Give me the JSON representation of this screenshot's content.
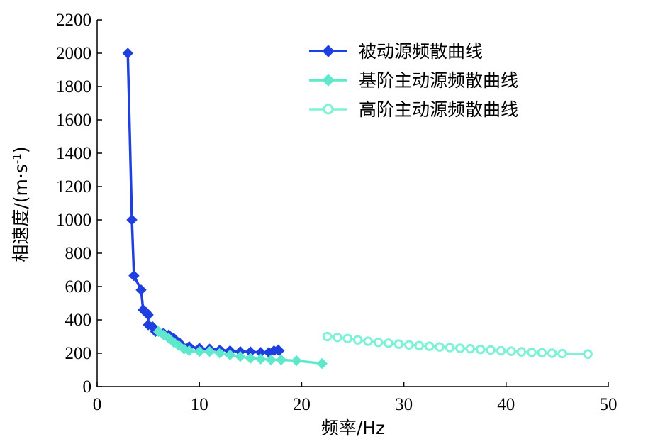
{
  "chart_data": {
    "type": "line",
    "xlabel": "频率/Hz",
    "ylabel": "相速度/(m·s",
    "ylabel_sup": "-1",
    "ylabel_end": ")",
    "xlim": [
      0,
      50
    ],
    "ylim": [
      0,
      2200
    ],
    "xticks": [
      0,
      10,
      20,
      30,
      40,
      50
    ],
    "yticks": [
      0,
      200,
      400,
      600,
      800,
      1000,
      1200,
      1400,
      1600,
      1800,
      2000,
      2200
    ],
    "grid": false,
    "legend_position": "top-right",
    "series": [
      {
        "name": "被动源频散曲线",
        "color": "#1f3fe0",
        "marker": "diamond",
        "points": [
          [
            3.0,
            2000
          ],
          [
            3.4,
            1000
          ],
          [
            3.6,
            665
          ],
          [
            4.3,
            580
          ],
          [
            4.5,
            460
          ],
          [
            4.8,
            445
          ],
          [
            5.0,
            430
          ],
          [
            5.0,
            370
          ],
          [
            5.4,
            360
          ],
          [
            5.7,
            330
          ],
          [
            6.5,
            320
          ],
          [
            7.0,
            310
          ],
          [
            7.5,
            290
          ],
          [
            8.0,
            265
          ],
          [
            9.0,
            240
          ],
          [
            10.0,
            230
          ],
          [
            11.0,
            225
          ],
          [
            12.0,
            220
          ],
          [
            13.0,
            215
          ],
          [
            14.0,
            210
          ],
          [
            15.0,
            208
          ],
          [
            16.0,
            205
          ],
          [
            16.8,
            205
          ],
          [
            17.3,
            215
          ],
          [
            17.7,
            220
          ],
          [
            17.8,
            215
          ]
        ]
      },
      {
        "name": "基阶主动源频散曲线",
        "color": "#5fe8cc",
        "marker": "diamond",
        "points": [
          [
            6.0,
            330
          ],
          [
            6.5,
            310
          ],
          [
            7.0,
            290
          ],
          [
            7.5,
            265
          ],
          [
            8.0,
            245
          ],
          [
            8.5,
            225
          ],
          [
            9.0,
            215
          ],
          [
            10.0,
            210
          ],
          [
            11.0,
            210
          ],
          [
            12.0,
            200
          ],
          [
            13.0,
            190
          ],
          [
            14.0,
            180
          ],
          [
            15.0,
            170
          ],
          [
            16.0,
            165
          ],
          [
            17.0,
            160
          ],
          [
            18.0,
            160
          ],
          [
            19.5,
            155
          ],
          [
            22.0,
            138
          ]
        ]
      },
      {
        "name": "高阶主动源频散曲线",
        "color": "#7ef2d6",
        "marker": "circle",
        "points": [
          [
            22.5,
            300
          ],
          [
            23.5,
            295
          ],
          [
            24.5,
            288
          ],
          [
            25.5,
            280
          ],
          [
            26.5,
            272
          ],
          [
            27.5,
            265
          ],
          [
            28.5,
            260
          ],
          [
            29.5,
            255
          ],
          [
            30.5,
            250
          ],
          [
            31.5,
            246
          ],
          [
            32.5,
            242
          ],
          [
            33.5,
            238
          ],
          [
            34.5,
            234
          ],
          [
            35.5,
            230
          ],
          [
            36.5,
            227
          ],
          [
            37.5,
            223
          ],
          [
            38.5,
            219
          ],
          [
            39.5,
            215
          ],
          [
            40.5,
            212
          ],
          [
            41.5,
            208
          ],
          [
            42.5,
            205
          ],
          [
            43.5,
            203
          ],
          [
            44.5,
            200
          ],
          [
            45.5,
            198
          ],
          [
            48.0,
            195
          ]
        ]
      }
    ]
  }
}
